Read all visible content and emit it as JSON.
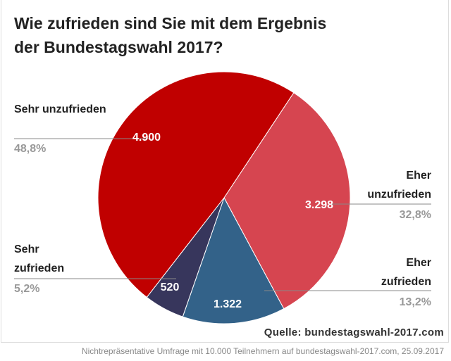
{
  "title": "Wie zufrieden sind Sie mit dem Ergebnis der Bundestagswahl 2017?",
  "source": "Quelle: bundestagswahl-2017.com",
  "note": "Nichtrepräsentative Umfrage mit 10.000 Teilnehmern auf bundestagswahl-2017.com, 25.09.2017",
  "chart_data": {
    "type": "pie",
    "title": "Wie zufrieden sind Sie mit dem Ergebnis der Bundestagswahl 2017?",
    "slices": [
      {
        "label": "Sehr unzufrieden",
        "value": 4900,
        "value_label": "4.900",
        "percent": "48,8%",
        "color": "#c00000"
      },
      {
        "label": "Eher unzufrieden",
        "value": 3298,
        "value_label": "3.298",
        "percent": "32,8%",
        "color": "#d64550"
      },
      {
        "label": "Eher zufrieden",
        "value": 1322,
        "value_label": "1.322",
        "percent": "13,2%",
        "color": "#336289"
      },
      {
        "label": "Sehr zufrieden",
        "value": 520,
        "value_label": "520",
        "percent": "5,2%",
        "color": "#37365c"
      }
    ]
  }
}
